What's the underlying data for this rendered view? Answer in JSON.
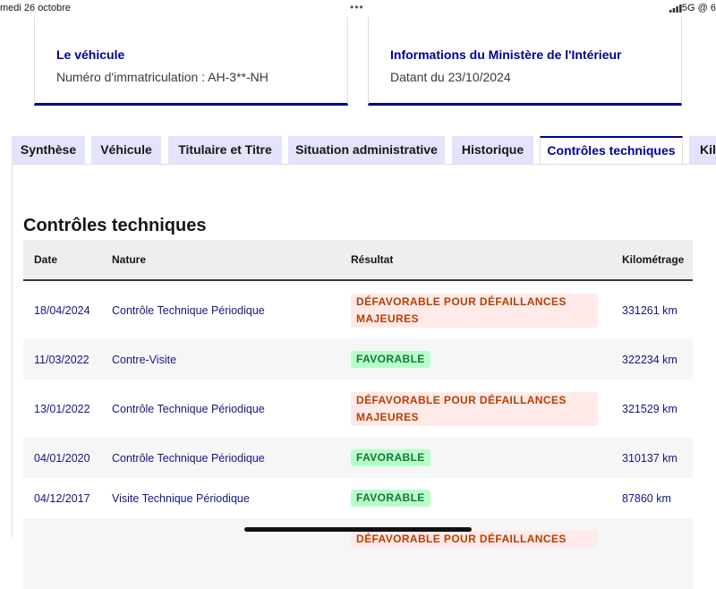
{
  "status_bar": {
    "date": "medi 26 octobre",
    "dots": "•••",
    "network": "5G @ 6"
  },
  "cards": [
    {
      "title": "Le véhicule",
      "text": "Numéro d'immatriculation : AH-3**-NH"
    },
    {
      "title": "Informations du Ministère de l'Intérieur",
      "text": "Datant du 23/10/2024"
    }
  ],
  "tabs": [
    "Synthèse",
    "Véhicule",
    "Titulaire et Titre",
    "Situation administrative",
    "Historique",
    "Contrôles techniques",
    "Kilo"
  ],
  "section": {
    "title": "Contrôles techniques",
    "table": {
      "headers": [
        "Date",
        "Nature",
        "Résultat",
        "Kilométrage"
      ],
      "rows": [
        [
          "18/04/2024",
          "Contrôle Technique Périodique",
          "DÉFAVORABLE POUR DÉFAILLANCES MAJEURES",
          "331261 km"
        ],
        [
          "11/03/2022",
          "Contre-Visite",
          "FAVORABLE",
          "322234 km"
        ],
        [
          "13/01/2022",
          "Contrôle Technique Périodique",
          "DÉFAVORABLE POUR DÉFAILLANCES MAJEURES",
          "321529 km"
        ],
        [
          "04/01/2020",
          "Contrôle Technique Périodique",
          "FAVORABLE",
          "310137 km"
        ],
        [
          "04/12/2017",
          "Visite Technique Périodique",
          "FAVORABLE",
          "87860 km"
        ]
      ],
      "cut_off_result": "DÉFAVORABLE POUR DÉFAILLANCES"
    }
  }
}
